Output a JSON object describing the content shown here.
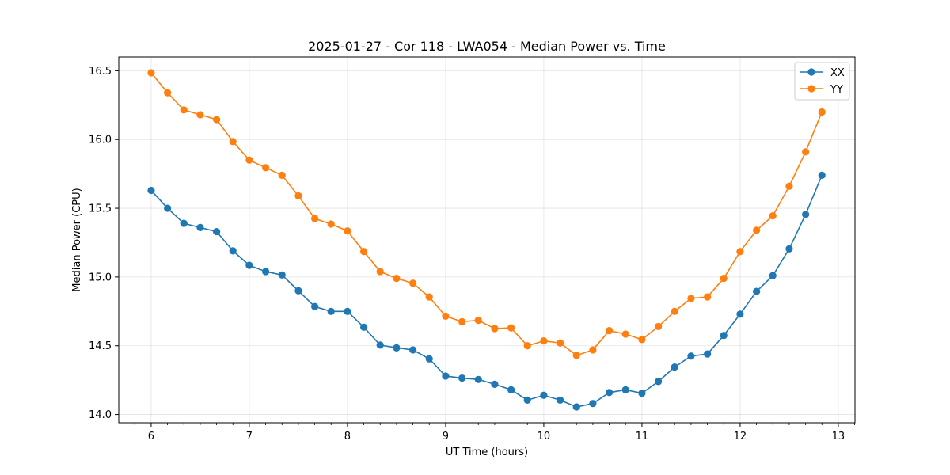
{
  "chart_data": {
    "type": "line",
    "title": "2025-01-27 - Cor 118 - LWA054 - Median Power vs. Time",
    "xlabel": "UT Time (hours)",
    "ylabel": "Median Power (CPU)",
    "xlim": [
      5.67,
      13.17
    ],
    "ylim": [
      13.94,
      16.6
    ],
    "x_ticks": [
      6,
      7,
      8,
      9,
      10,
      11,
      12,
      13
    ],
    "y_ticks": [
      14.0,
      14.5,
      15.0,
      15.5,
      16.0,
      16.5
    ],
    "x_tick_labels": [
      "6",
      "7",
      "8",
      "9",
      "10",
      "11",
      "12",
      "13"
    ],
    "y_tick_labels": [
      "14.0",
      "14.5",
      "15.0",
      "15.5",
      "16.0",
      "16.5"
    ],
    "grid": true,
    "legend_position": "upper right",
    "x": [
      6.0,
      6.167,
      6.333,
      6.5,
      6.667,
      6.833,
      7.0,
      7.167,
      7.333,
      7.5,
      7.667,
      7.833,
      8.0,
      8.167,
      8.333,
      8.5,
      8.667,
      8.833,
      9.0,
      9.167,
      9.333,
      9.5,
      9.667,
      9.833,
      10.0,
      10.167,
      10.333,
      10.5,
      10.667,
      10.833,
      11.0,
      11.167,
      11.333,
      11.5,
      11.667,
      11.833,
      12.0,
      12.167,
      12.333,
      12.5,
      12.667,
      12.833
    ],
    "series": [
      {
        "name": "XX",
        "color": "#1f77b4",
        "values": [
          15.63,
          15.5,
          15.39,
          15.36,
          15.33,
          15.19,
          15.085,
          15.04,
          15.015,
          14.9,
          14.785,
          14.75,
          14.75,
          14.635,
          14.505,
          14.485,
          14.47,
          14.405,
          14.28,
          14.265,
          14.255,
          14.22,
          14.18,
          14.105,
          14.14,
          14.105,
          14.055,
          14.08,
          14.16,
          14.18,
          14.155,
          14.24,
          14.345,
          14.425,
          14.44,
          14.575,
          14.73,
          14.895,
          15.01,
          15.205,
          15.455,
          15.74
        ]
      },
      {
        "name": "YY",
        "color": "#ff7f0e",
        "values": [
          16.485,
          16.34,
          16.215,
          16.18,
          16.145,
          15.985,
          15.85,
          15.795,
          15.74,
          15.59,
          15.425,
          15.385,
          15.335,
          15.185,
          15.04,
          14.99,
          14.955,
          14.855,
          14.715,
          14.675,
          14.685,
          14.625,
          14.63,
          14.5,
          14.535,
          14.52,
          14.43,
          14.47,
          14.61,
          14.585,
          14.545,
          14.64,
          14.75,
          14.845,
          14.855,
          14.99,
          15.185,
          15.34,
          15.445,
          15.66,
          15.91,
          16.2
        ]
      }
    ]
  }
}
